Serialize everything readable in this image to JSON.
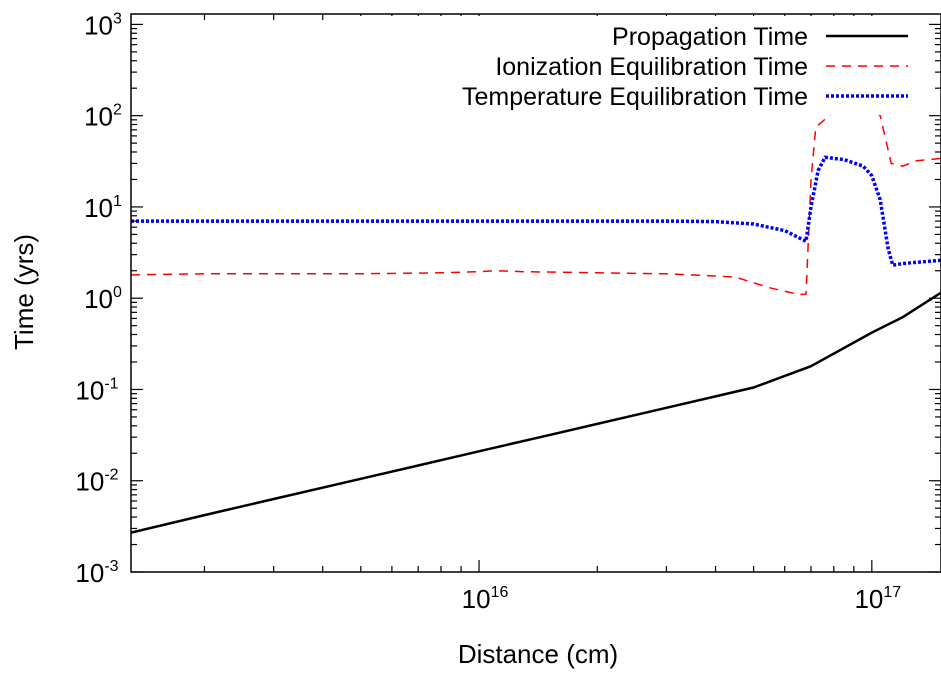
{
  "chart_data": {
    "type": "line",
    "xlabel": "Distance (cm)",
    "ylabel": "Time (yrs)",
    "xscale": "log",
    "yscale": "log",
    "xlim": [
      1300000000000000.0,
      1.5e+17
    ],
    "ylim": [
      0.001,
      1300
    ],
    "grid": false,
    "legend_position": "top-right",
    "x_ticks": [
      {
        "value": 1e+16,
        "base": "10",
        "exp": "16"
      },
      {
        "value": 1e+17,
        "base": "10",
        "exp": "17"
      }
    ],
    "y_ticks": [
      {
        "value": 0.001,
        "base": "10",
        "exp": "-3"
      },
      {
        "value": 0.01,
        "base": "10",
        "exp": "-2"
      },
      {
        "value": 0.1,
        "base": "10",
        "exp": "-1"
      },
      {
        "value": 1,
        "base": "10",
        "exp": "0"
      },
      {
        "value": 10,
        "base": "10",
        "exp": "1"
      },
      {
        "value": 100,
        "base": "10",
        "exp": "2"
      },
      {
        "value": 1000,
        "base": "10",
        "exp": "3"
      }
    ],
    "series": [
      {
        "name": "Propagation Time",
        "color": "#000000",
        "style": "solid",
        "x": [
          1300000000000000.0,
          2000000000000000.0,
          3000000000000000.0,
          5000000000000000.0,
          7000000000000000.0,
          1e+16,
          1.5e+16,
          2e+16,
          3e+16,
          4e+16,
          5e+16,
          7e+16,
          1e+17,
          1.2e+17,
          1.5e+17
        ],
        "y": [
          0.0027,
          0.0042,
          0.0063,
          0.0105,
          0.0147,
          0.021,
          0.0315,
          0.042,
          0.063,
          0.084,
          0.105,
          0.18,
          0.42,
          0.62,
          1.15
        ]
      },
      {
        "name": "Ionization Equilibration Time",
        "color": "#ff0000",
        "style": "dashed",
        "x": [
          1300000000000000.0,
          2000000000000000.0,
          3000000000000000.0,
          5000000000000000.0,
          8000000000000000.0,
          1e+16,
          1.1e+16,
          1.3e+16,
          2e+16,
          3e+16,
          4e+16,
          4.5e+16,
          5.5e+16,
          6.5e+16,
          6.8e+16,
          7e+16,
          7.2e+16,
          8e+16,
          9e+16,
          1e+17,
          1.05e+17,
          1.12e+17,
          1.2e+17,
          1.3e+17,
          1.5e+17
        ],
        "y": [
          1.8,
          1.85,
          1.85,
          1.85,
          1.9,
          1.95,
          2.0,
          1.95,
          1.9,
          1.85,
          1.75,
          1.7,
          1.3,
          1.1,
          1.1,
          20,
          75,
          110,
          115,
          118,
          100,
          30,
          28,
          32,
          34
        ]
      },
      {
        "name": "Temperature Equilibration Time",
        "color": "#0000ff",
        "style": "dotted",
        "x": [
          1300000000000000.0,
          2000000000000000.0,
          3000000000000000.0,
          5000000000000000.0,
          1e+16,
          2e+16,
          3e+16,
          4e+16,
          5e+16,
          6e+16,
          6.8e+16,
          7e+16,
          7.3e+16,
          7.6e+16,
          8.5e+16,
          9.5e+16,
          1e+17,
          1.05e+17,
          1.1e+17,
          1.13e+17,
          1.2e+17,
          1.5e+17
        ],
        "y": [
          7.0,
          7.0,
          7.0,
          7.0,
          7.0,
          7.0,
          7.0,
          6.9,
          6.5,
          5.5,
          4.2,
          10,
          25,
          35,
          33,
          28,
          22,
          12,
          3.5,
          2.3,
          2.4,
          2.6
        ]
      }
    ]
  }
}
